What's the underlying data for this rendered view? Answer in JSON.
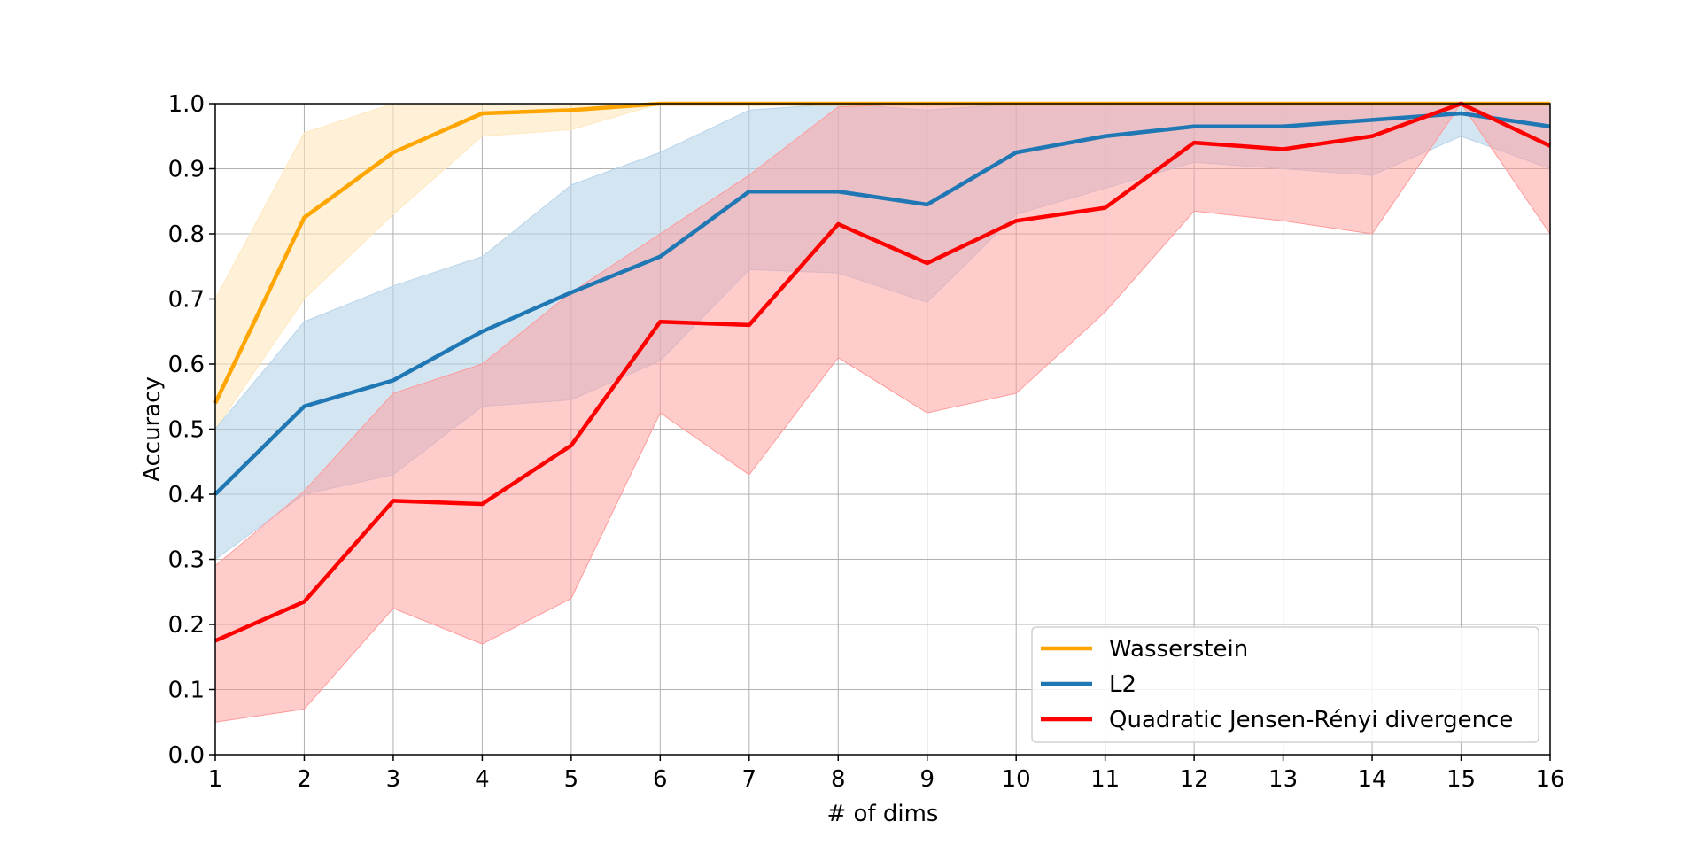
{
  "chart_data": {
    "type": "line",
    "xlabel": "# of dims",
    "ylabel": "Accuracy",
    "xlim": [
      1,
      16
    ],
    "ylim": [
      0,
      1
    ],
    "grid": true,
    "legend_position": "bottom-right",
    "x_ticks": [
      "1",
      "2",
      "3",
      "4",
      "5",
      "6",
      "7",
      "8",
      "9",
      "10",
      "11",
      "12",
      "13",
      "14",
      "15",
      "16"
    ],
    "y_ticks": [
      "0.0",
      "0.1",
      "0.2",
      "0.3",
      "0.4",
      "0.5",
      "0.6",
      "0.7",
      "0.8",
      "0.9",
      "1.0"
    ],
    "x": [
      1,
      2,
      3,
      4,
      5,
      6,
      7,
      8,
      9,
      10,
      11,
      12,
      13,
      14,
      15,
      16
    ],
    "series": [
      {
        "name": "Wasserstein",
        "color": "#ffa500",
        "band_color": "#ffe7bd",
        "values": [
          0.54,
          0.825,
          0.925,
          0.985,
          0.99,
          1.0,
          1.0,
          1.0,
          1.0,
          1.0,
          1.0,
          1.0,
          1.0,
          1.0,
          1.0,
          1.0
        ],
        "lower": [
          0.5,
          0.7,
          0.83,
          0.95,
          0.96,
          1.0,
          1.0,
          1.0,
          1.0,
          1.0,
          1.0,
          1.0,
          1.0,
          1.0,
          1.0,
          1.0
        ],
        "upper": [
          0.7,
          0.955,
          1.0,
          1.0,
          1.0,
          1.0,
          1.0,
          1.0,
          1.0,
          1.0,
          1.0,
          1.0,
          1.0,
          1.0,
          1.0,
          1.0
        ]
      },
      {
        "name": "L2",
        "color": "#1f77b4",
        "band_color": "#b8d4ea",
        "values": [
          0.4,
          0.535,
          0.575,
          0.65,
          0.71,
          0.765,
          0.865,
          0.865,
          0.845,
          0.925,
          0.95,
          0.965,
          0.965,
          0.975,
          0.985,
          0.965
        ],
        "lower": [
          0.3,
          0.4,
          0.43,
          0.535,
          0.545,
          0.605,
          0.745,
          0.74,
          0.695,
          0.83,
          0.87,
          0.91,
          0.9,
          0.89,
          0.95,
          0.9
        ],
        "upper": [
          0.5,
          0.665,
          0.72,
          0.765,
          0.875,
          0.925,
          0.99,
          1.0,
          0.99,
          1.0,
          1.0,
          1.0,
          1.0,
          1.0,
          1.0,
          1.0
        ]
      },
      {
        "name": "Quadratic Jensen-Rényi divergence",
        "color": "#ff0000",
        "band_color": "#ff9a9a",
        "values": [
          0.175,
          0.235,
          0.39,
          0.385,
          0.475,
          0.665,
          0.66,
          0.815,
          0.755,
          0.82,
          0.84,
          0.94,
          0.93,
          0.95,
          1.0,
          0.935
        ],
        "lower": [
          0.05,
          0.07,
          0.225,
          0.17,
          0.24,
          0.525,
          0.43,
          0.61,
          0.525,
          0.555,
          0.68,
          0.835,
          0.82,
          0.8,
          1.0,
          0.8
        ],
        "upper": [
          0.29,
          0.405,
          0.555,
          0.6,
          0.71,
          0.8,
          0.89,
          0.995,
          1.0,
          1.0,
          1.0,
          1.0,
          1.0,
          1.0,
          1.0,
          1.0
        ]
      }
    ]
  }
}
